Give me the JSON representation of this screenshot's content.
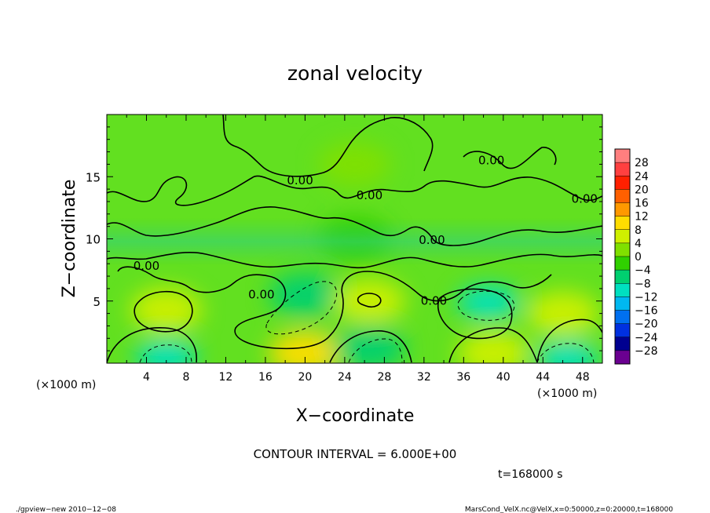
{
  "chart_data": {
    "type": "heatmap",
    "title": "zonal velocity",
    "xlabel": "X−coordinate",
    "ylabel": "Z−coordinate",
    "x_unit": "(×1000 m)",
    "y_unit": "(×1000 m)",
    "xlim": [
      0,
      50
    ],
    "ylim": [
      0,
      20
    ],
    "x_ticks": [
      4,
      8,
      12,
      16,
      20,
      24,
      28,
      32,
      36,
      40,
      44,
      48
    ],
    "y_ticks": [
      5,
      10,
      15
    ],
    "contour_interval_label": "CONTOUR INTERVAL = 6.000E+00",
    "time_label": "t=168000 s",
    "contour_labels": [
      {
        "text": "0.00",
        "x": 19.5,
        "z": 14.4
      },
      {
        "text": "0.00",
        "x": 26.5,
        "z": 13.2
      },
      {
        "text": "0.00",
        "x": 32.8,
        "z": 9.6
      },
      {
        "text": "0.00",
        "x": 38.8,
        "z": 16.0
      },
      {
        "text": "0.00",
        "x": 48.2,
        "z": 12.9
      },
      {
        "text": "0.00",
        "x": 4.0,
        "z": 7.5
      },
      {
        "text": "0.00",
        "x": 15.6,
        "z": 5.2
      },
      {
        "text": "0.00",
        "x": 33.0,
        "z": 4.7
      }
    ],
    "colorbar": {
      "levels": [
        28,
        24,
        20,
        16,
        12,
        8,
        4,
        0,
        -4,
        -8,
        -12,
        -16,
        -20,
        -24,
        -28
      ],
      "labels": [
        "28",
        "24",
        "20",
        "16",
        "12",
        "8",
        "4",
        "0",
        "−4",
        "−8",
        "−12",
        "−16",
        "−20",
        "−24",
        "−28"
      ],
      "colors": [
        "#ff7f7f",
        "#ff4040",
        "#ff2000",
        "#ff6000",
        "#ff9900",
        "#ffdd00",
        "#cff000",
        "#80e000",
        "#30d000",
        "#00d070",
        "#00e0c0",
        "#00b8f0",
        "#0070f0",
        "#0030e0",
        "#000090",
        "#6a0090"
      ]
    },
    "features": [
      {
        "x": 6.0,
        "z": 4.3,
        "u": 6
      },
      {
        "x": 6.0,
        "z": 0.5,
        "u": -10
      },
      {
        "x": 20.0,
        "z": 0.8,
        "u": 8
      },
      {
        "x": 20.0,
        "z": 5.5,
        "u": -7
      },
      {
        "x": 26.5,
        "z": 1.2,
        "u": -8
      },
      {
        "x": 26.5,
        "z": 5.0,
        "u": 4
      },
      {
        "x": 38.5,
        "z": 4.9,
        "u": -12
      },
      {
        "x": 39.0,
        "z": 0.8,
        "u": 6
      },
      {
        "x": 46.0,
        "z": 4.0,
        "u": 6
      },
      {
        "x": 46.5,
        "z": 0.4,
        "u": -11
      },
      {
        "x": 25.0,
        "z": 10.0,
        "u": -3
      },
      {
        "x": 25.0,
        "z": 16.0,
        "u": 1
      }
    ]
  },
  "footer": {
    "left": "./gpview−new   2010−12−08",
    "right": "MarsCond_VelX.nc@VelX,x=0:50000,z=0:20000,t=168000"
  }
}
